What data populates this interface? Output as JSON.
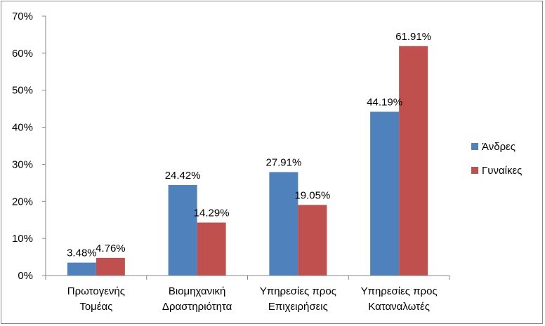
{
  "chart_data": {
    "type": "bar",
    "categories": [
      [
        "Πρωτογενής",
        "Τομέας"
      ],
      [
        "Βιομηχανική",
        "Δραστηριότητα"
      ],
      [
        "Υπηρεσίες προς",
        "Επιχειρήσεις"
      ],
      [
        "Υπηρεσίες προς",
        "Καταναλωτές"
      ]
    ],
    "series": [
      {
        "name": "Άνδρες",
        "color": "#4F81BD",
        "values": [
          3.48,
          24.42,
          27.91,
          44.19
        ],
        "labels": [
          "3.48%",
          "24.42%",
          "27.91%",
          "44.19%"
        ]
      },
      {
        "name": "Γυναίκες",
        "color": "#C0504D",
        "values": [
          4.76,
          14.29,
          19.05,
          61.91
        ],
        "labels": [
          "4.76%",
          "14.29%",
          "19.05%",
          "61.91%"
        ]
      }
    ],
    "ylim": [
      0,
      70
    ],
    "yticks": [
      "0%",
      "10%",
      "20%",
      "30%",
      "40%",
      "50%",
      "60%",
      "70%"
    ],
    "grid": false,
    "legend_position": "right"
  }
}
